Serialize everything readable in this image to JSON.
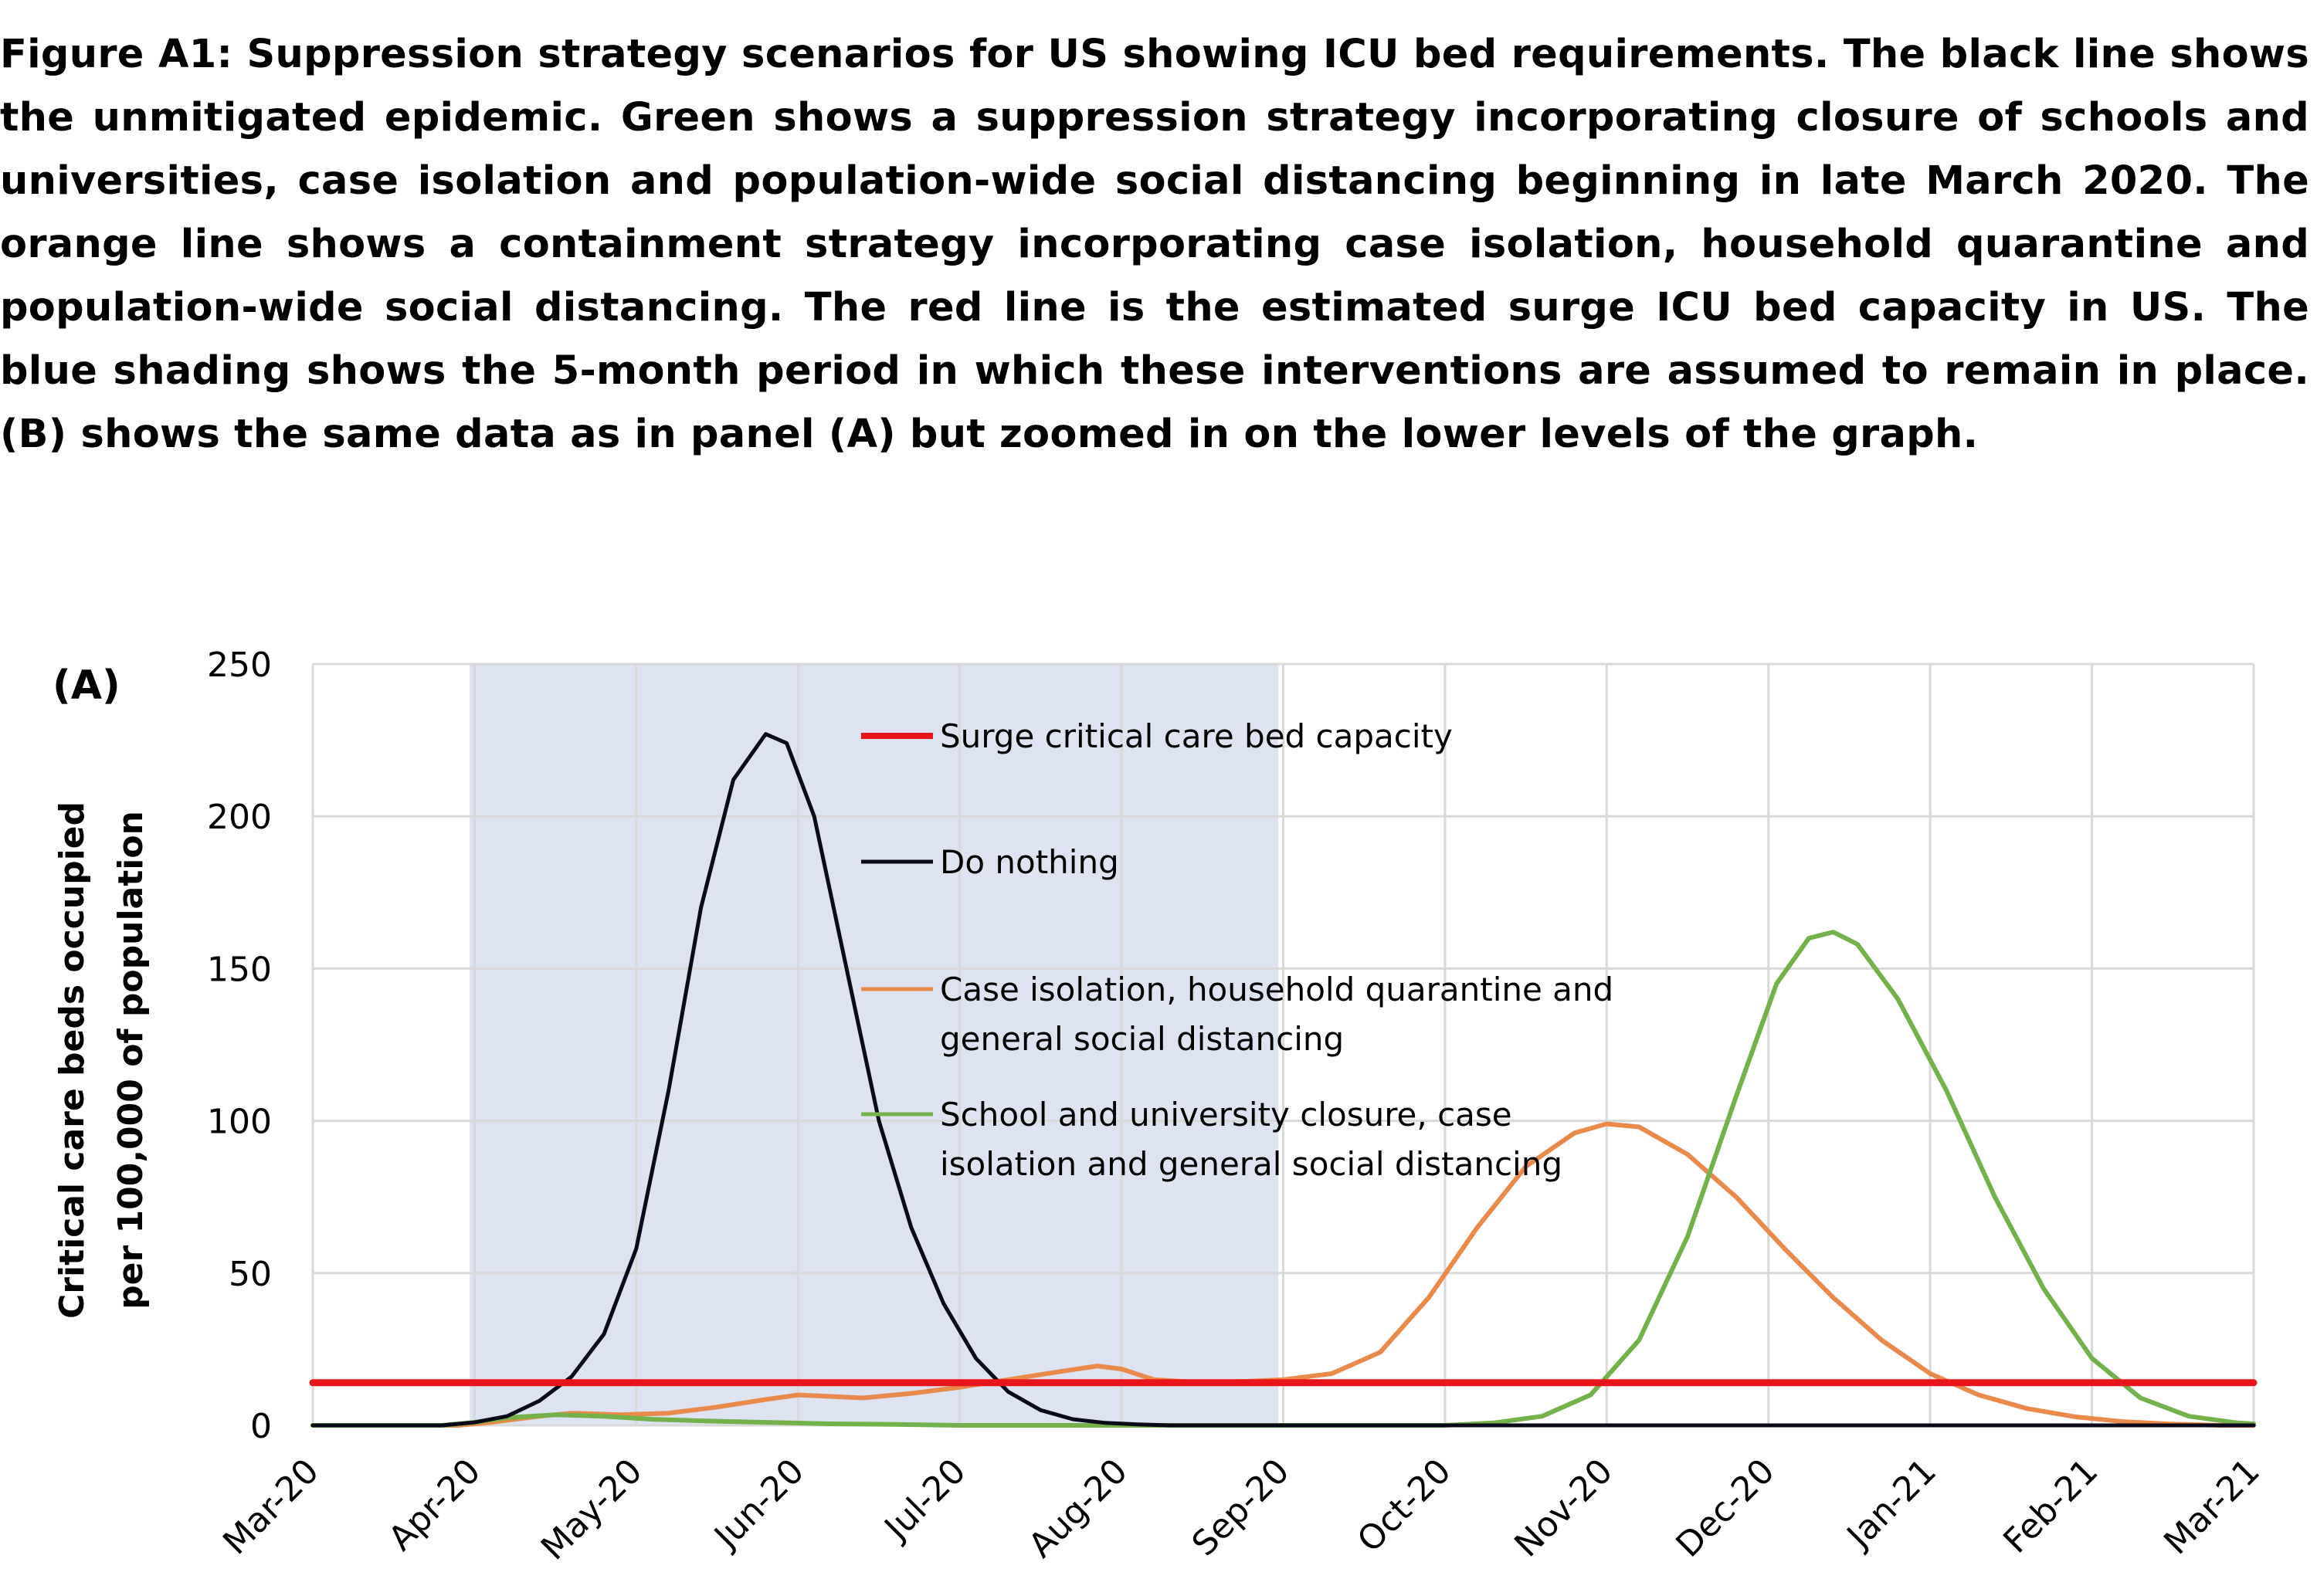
{
  "caption": "Figure A1: Suppression strategy scenarios for US showing ICU bed requirements. The black line shows the unmitigated epidemic. Green shows a suppression strategy incorporating closure of schools and universities, case isolation and population-wide social distancing beginning in late March 2020. The orange line shows a containment strategy incorporating case isolation, household quarantine and population-wide social distancing. The red line is the estimated surge ICU bed capacity in US.  The blue shading shows the 5-month period in which these interventions are assumed to remain in place. (B) shows the same data as in panel (A) but zoomed in on the lower levels of the graph.",
  "chart_data": {
    "type": "line",
    "panel_label": "(A)",
    "title": "",
    "xlabel": "",
    "ylabel_lines": [
      "Critical care beds occupied",
      "per 100,000 of population"
    ],
    "x_ticks": [
      "Mar-20",
      "Apr-20",
      "May-20",
      "Jun-20",
      "Jul-20",
      "Aug-20",
      "Sep-20",
      "Oct-20",
      "Nov-20",
      "Dec-20",
      "Jan-21",
      "Feb-21",
      "Mar-21"
    ],
    "y_ticks": [
      "0",
      "50",
      "100",
      "150",
      "200",
      "250"
    ],
    "ylim": [
      0,
      250
    ],
    "xlim": [
      0,
      12
    ],
    "grid": true,
    "legend_position": "upper-center",
    "shaded_period": {
      "x_start": 0.97,
      "x_end": 5.97,
      "color": "#dde3f0"
    },
    "colors": {
      "capacity": "#e8161b",
      "do_nothing": "#0a0a1a",
      "case_isolation": "#e98a4a",
      "school_closure": "#73b14a",
      "grid": "#d9d9d9"
    },
    "series": [
      {
        "name": "Surge critical care bed capacity",
        "key": "capacity",
        "legend_lines": [
          "Surge critical care bed capacity"
        ],
        "points": [
          [
            0,
            14
          ],
          [
            12,
            14
          ]
        ]
      },
      {
        "name": "Do nothing",
        "key": "do_nothing",
        "legend_lines": [
          "Do nothing"
        ],
        "points": [
          [
            0,
            0
          ],
          [
            0.8,
            0
          ],
          [
            1.0,
            1
          ],
          [
            1.2,
            3
          ],
          [
            1.4,
            8
          ],
          [
            1.6,
            16
          ],
          [
            1.8,
            30
          ],
          [
            2.0,
            58
          ],
          [
            2.2,
            110
          ],
          [
            2.4,
            170
          ],
          [
            2.6,
            212
          ],
          [
            2.8,
            227
          ],
          [
            2.93,
            224
          ],
          [
            3.1,
            200
          ],
          [
            3.3,
            150
          ],
          [
            3.5,
            100
          ],
          [
            3.7,
            65
          ],
          [
            3.9,
            40
          ],
          [
            4.1,
            22
          ],
          [
            4.3,
            11
          ],
          [
            4.5,
            5
          ],
          [
            4.7,
            2
          ],
          [
            4.9,
            0.8
          ],
          [
            5.1,
            0.3
          ],
          [
            5.3,
            0
          ],
          [
            5.5,
            0
          ],
          [
            12,
            0
          ]
        ]
      },
      {
        "name": "Case isolation, household quarantine and general social distancing",
        "key": "case_isolation",
        "legend_lines": [
          "Case isolation, household quarantine and",
          "general social distancing"
        ],
        "points": [
          [
            0,
            0
          ],
          [
            0.9,
            0
          ],
          [
            1.1,
            1
          ],
          [
            1.4,
            3
          ],
          [
            1.6,
            4
          ],
          [
            1.9,
            3.5
          ],
          [
            2.2,
            4
          ],
          [
            2.5,
            6
          ],
          [
            2.8,
            8.5
          ],
          [
            3.0,
            10
          ],
          [
            3.2,
            9.5
          ],
          [
            3.4,
            9
          ],
          [
            3.7,
            10.5
          ],
          [
            4.0,
            12.5
          ],
          [
            4.3,
            15
          ],
          [
            4.6,
            17.5
          ],
          [
            4.85,
            19.5
          ],
          [
            5.0,
            18.5
          ],
          [
            5.2,
            15
          ],
          [
            5.5,
            14
          ],
          [
            5.8,
            14.5
          ],
          [
            6.0,
            15
          ],
          [
            6.3,
            17
          ],
          [
            6.6,
            24
          ],
          [
            6.9,
            42
          ],
          [
            7.2,
            65
          ],
          [
            7.5,
            85
          ],
          [
            7.8,
            96
          ],
          [
            8.0,
            99
          ],
          [
            8.2,
            98
          ],
          [
            8.5,
            89
          ],
          [
            8.8,
            75
          ],
          [
            9.1,
            58
          ],
          [
            9.4,
            42
          ],
          [
            9.7,
            28
          ],
          [
            10.0,
            17
          ],
          [
            10.3,
            10
          ],
          [
            10.6,
            5.5
          ],
          [
            10.9,
            2.8
          ],
          [
            11.2,
            1.2
          ],
          [
            11.5,
            0.4
          ],
          [
            11.8,
            0
          ],
          [
            12,
            0
          ]
        ]
      },
      {
        "name": "School and university closure, case isolation and general social distancing",
        "key": "school_closure",
        "legend_lines": [
          "School and university closure, case",
          "isolation and general social distancing"
        ],
        "points": [
          [
            0,
            0
          ],
          [
            0.8,
            0
          ],
          [
            1.0,
            1
          ],
          [
            1.2,
            2.5
          ],
          [
            1.5,
            3.5
          ],
          [
            1.8,
            3
          ],
          [
            2.1,
            2
          ],
          [
            2.4,
            1.5
          ],
          [
            2.8,
            1
          ],
          [
            3.2,
            0.5
          ],
          [
            3.6,
            0.3
          ],
          [
            4.0,
            0
          ],
          [
            7.0,
            0
          ],
          [
            7.3,
            0.8
          ],
          [
            7.6,
            3
          ],
          [
            7.9,
            10
          ],
          [
            8.2,
            28
          ],
          [
            8.5,
            62
          ],
          [
            8.8,
            108
          ],
          [
            9.05,
            145
          ],
          [
            9.25,
            160
          ],
          [
            9.4,
            162
          ],
          [
            9.55,
            158
          ],
          [
            9.8,
            140
          ],
          [
            10.1,
            110
          ],
          [
            10.4,
            75
          ],
          [
            10.7,
            45
          ],
          [
            11.0,
            22
          ],
          [
            11.3,
            9
          ],
          [
            11.6,
            3
          ],
          [
            11.9,
            0.8
          ],
          [
            12,
            0.5
          ]
        ]
      }
    ]
  }
}
